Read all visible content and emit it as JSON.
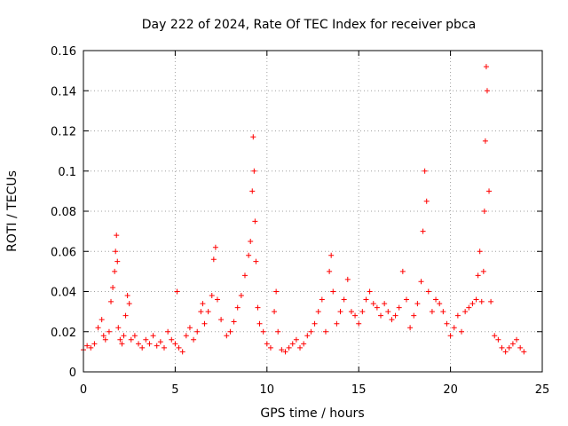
{
  "chart_data": {
    "type": "scatter",
    "title": "Day 222 of 2024, Rate Of TEC Index for receiver pbca",
    "xlabel": "GPS time / hours",
    "ylabel": "ROTI / TECUs",
    "xlim": [
      0,
      25
    ],
    "ylim": [
      0,
      0.16
    ],
    "xticks": [
      "0",
      "5",
      "10",
      "15",
      "20",
      "25"
    ],
    "yticks": [
      "0",
      "0.02",
      "0.04",
      "0.06",
      "0.08",
      "0.1",
      "0.12",
      "0.14",
      "0.16"
    ],
    "grid": true,
    "marker": "plus",
    "color": "#ff0000",
    "series": [
      {
        "x": [
          0.0,
          0.2,
          0.4,
          0.6,
          0.8,
          1.0,
          1.1,
          1.2,
          1.4,
          1.5,
          1.6,
          1.7,
          1.75,
          1.8,
          1.85,
          1.9,
          2.0,
          2.1,
          2.2,
          2.3,
          2.4,
          2.5,
          2.6,
          2.8,
          3.0,
          3.2,
          3.4,
          3.6,
          3.8,
          4.0,
          4.2,
          4.4,
          4.6,
          4.8,
          5.0,
          5.1,
          5.2,
          5.4,
          5.6,
          5.8,
          6.0,
          6.2,
          6.4,
          6.5,
          6.6,
          6.8,
          7.0,
          7.1,
          7.2,
          7.3,
          7.5,
          7.8,
          8.0,
          8.2,
          8.4,
          8.6,
          8.8,
          9.0,
          9.1,
          9.2,
          9.25,
          9.3,
          9.35,
          9.4,
          9.5,
          9.6,
          9.8,
          10.0,
          10.2,
          10.4,
          10.5,
          10.6,
          10.8,
          11.0,
          11.2,
          11.4,
          11.6,
          11.8,
          12.0,
          12.2,
          12.4,
          12.6,
          12.8,
          13.0,
          13.2,
          13.4,
          13.5,
          13.6,
          13.8,
          14.0,
          14.2,
          14.4,
          14.6,
          14.8,
          15.0,
          15.2,
          15.4,
          15.6,
          15.8,
          16.0,
          16.2,
          16.4,
          16.6,
          16.8,
          17.0,
          17.2,
          17.4,
          17.6,
          17.8,
          18.0,
          18.2,
          18.4,
          18.5,
          18.6,
          18.7,
          18.8,
          19.0,
          19.2,
          19.4,
          19.6,
          19.8,
          20.0,
          20.2,
          20.4,
          20.6,
          20.8,
          21.0,
          21.2,
          21.4,
          21.5,
          21.6,
          21.7,
          21.8,
          21.85,
          21.9,
          21.95,
          22.0,
          22.1,
          22.2,
          22.4,
          22.6,
          22.8,
          23.0,
          23.2,
          23.4,
          23.6,
          23.8,
          24.0
        ],
        "y": [
          0.011,
          0.013,
          0.012,
          0.014,
          0.022,
          0.026,
          0.018,
          0.016,
          0.02,
          0.035,
          0.042,
          0.05,
          0.06,
          0.068,
          0.055,
          0.022,
          0.016,
          0.014,
          0.018,
          0.028,
          0.038,
          0.034,
          0.016,
          0.018,
          0.014,
          0.012,
          0.016,
          0.014,
          0.018,
          0.013,
          0.015,
          0.012,
          0.02,
          0.016,
          0.014,
          0.04,
          0.012,
          0.01,
          0.018,
          0.022,
          0.016,
          0.02,
          0.03,
          0.034,
          0.024,
          0.03,
          0.038,
          0.056,
          0.062,
          0.036,
          0.026,
          0.018,
          0.02,
          0.025,
          0.032,
          0.038,
          0.048,
          0.058,
          0.065,
          0.09,
          0.117,
          0.1,
          0.075,
          0.055,
          0.032,
          0.024,
          0.02,
          0.014,
          0.012,
          0.03,
          0.04,
          0.02,
          0.011,
          0.01,
          0.012,
          0.014,
          0.016,
          0.012,
          0.014,
          0.018,
          0.02,
          0.024,
          0.03,
          0.036,
          0.02,
          0.05,
          0.058,
          0.04,
          0.024,
          0.03,
          0.036,
          0.046,
          0.03,
          0.028,
          0.024,
          0.03,
          0.036,
          0.04,
          0.034,
          0.032,
          0.028,
          0.034,
          0.03,
          0.026,
          0.028,
          0.032,
          0.05,
          0.036,
          0.022,
          0.028,
          0.034,
          0.045,
          0.07,
          0.1,
          0.085,
          0.04,
          0.03,
          0.036,
          0.034,
          0.03,
          0.024,
          0.018,
          0.022,
          0.028,
          0.02,
          0.03,
          0.032,
          0.034,
          0.036,
          0.048,
          0.06,
          0.035,
          0.05,
          0.08,
          0.115,
          0.152,
          0.14,
          0.09,
          0.035,
          0.018,
          0.016,
          0.012,
          0.01,
          0.012,
          0.014,
          0.016,
          0.012,
          0.01
        ]
      }
    ]
  }
}
